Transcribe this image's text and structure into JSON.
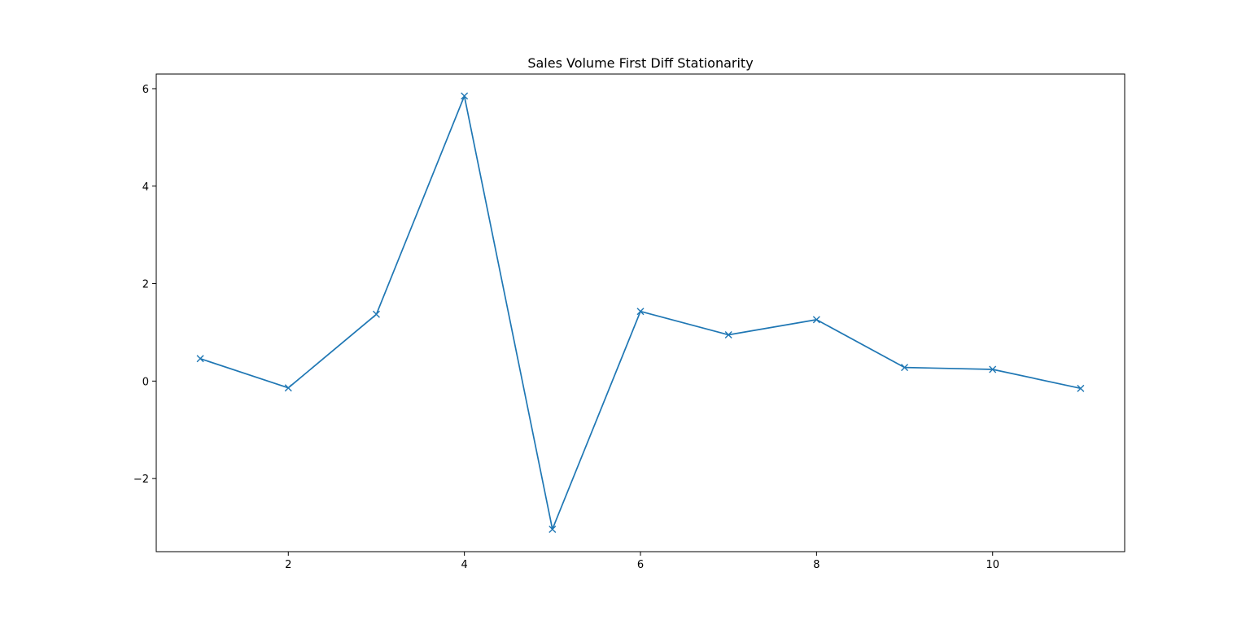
{
  "chart_data": {
    "type": "line",
    "title": "Sales Volume First Diff Stationarity",
    "xlabel": "",
    "ylabel": "",
    "xlim": [
      0.5,
      11.5
    ],
    "ylim": [
      -3.5,
      6.3
    ],
    "xticks": [
      2,
      4,
      6,
      8,
      10
    ],
    "yticks": [
      -2,
      0,
      2,
      4,
      6
    ],
    "xtick_labels": [
      "2",
      "4",
      "6",
      "8",
      "10"
    ],
    "ytick_labels": [
      "−2",
      "0",
      "2",
      "4",
      "6"
    ],
    "grid": false,
    "series": [
      {
        "color": "#1f77b4",
        "marker": "x",
        "x": [
          1,
          2,
          3,
          4,
          5,
          6,
          7,
          8,
          9,
          10,
          11
        ],
        "y": [
          0.46,
          -0.14,
          1.37,
          5.85,
          -3.04,
          1.43,
          0.95,
          1.26,
          0.28,
          0.24,
          -0.15
        ]
      }
    ]
  }
}
